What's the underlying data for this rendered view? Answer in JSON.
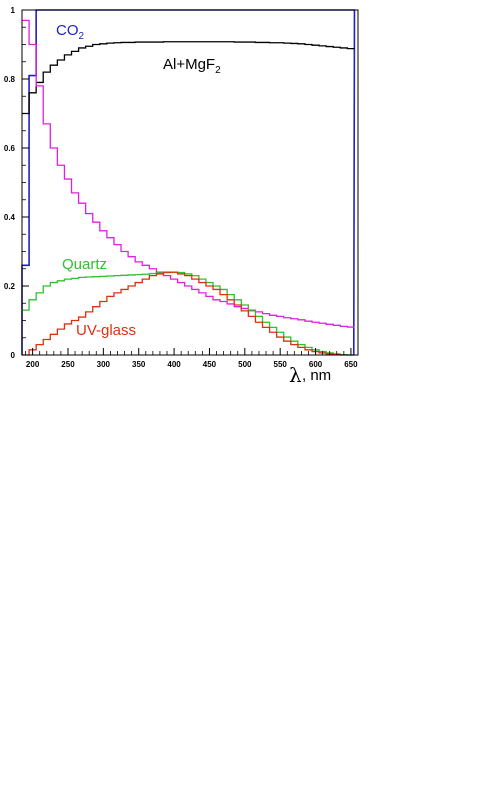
{
  "chart_data": {
    "type": "line",
    "style": "step-histogram",
    "title": "",
    "xlabel_symbol": "λ",
    "xlabel_unit": ", nm",
    "ylabel": "",
    "xlim": [
      185,
      660
    ],
    "ylim": [
      0,
      1.0
    ],
    "grid": false,
    "x_ticks": [
      200,
      250,
      300,
      350,
      400,
      450,
      500,
      550,
      600,
      650
    ],
    "y_ticks": [
      {
        "value": 0,
        "label": "0"
      },
      {
        "value": 0.2,
        "label": "0.2"
      },
      {
        "value": 0.4,
        "label": "0.4"
      },
      {
        "value": 0.6,
        "label": "0.6"
      },
      {
        "value": 0.8,
        "label": "0.8"
      },
      {
        "value": 1.0,
        "label": "1"
      }
    ],
    "bin_width": 10,
    "bin_start": 185,
    "series": [
      {
        "name": "CO",
        "name_subscript": "2",
        "color": "#2020c8",
        "values": [
          0.26,
          0.81,
          1.0,
          1.0,
          1.0,
          1.0,
          1.0,
          1.0,
          1.0,
          1.0,
          1.0,
          1.0,
          1.0,
          1.0,
          1.0,
          1.0,
          1.0,
          1.0,
          1.0,
          1.0,
          1.0,
          1.0,
          1.0,
          1.0,
          1.0,
          1.0,
          1.0,
          1.0,
          1.0,
          1.0,
          1.0,
          1.0,
          1.0,
          1.0,
          1.0,
          1.0,
          1.0,
          1.0,
          1.0,
          1.0,
          1.0,
          1.0,
          1.0,
          1.0,
          1.0,
          1.0,
          1.0
        ]
      },
      {
        "name": "Al+MgF",
        "name_subscript": "2",
        "color": "#000000",
        "values": [
          0.7,
          0.76,
          0.79,
          0.82,
          0.84,
          0.855,
          0.87,
          0.88,
          0.89,
          0.895,
          0.9,
          0.902,
          0.904,
          0.905,
          0.906,
          0.906,
          0.907,
          0.907,
          0.907,
          0.907,
          0.908,
          0.908,
          0.908,
          0.908,
          0.908,
          0.908,
          0.908,
          0.908,
          0.908,
          0.908,
          0.907,
          0.907,
          0.907,
          0.906,
          0.906,
          0.905,
          0.905,
          0.904,
          0.903,
          0.902,
          0.9,
          0.898,
          0.896,
          0.894,
          0.892,
          0.89,
          0.888
        ]
      },
      {
        "name": "",
        "color": "#e020e0",
        "values": [
          0.97,
          0.9,
          0.78,
          0.67,
          0.6,
          0.55,
          0.51,
          0.47,
          0.44,
          0.41,
          0.385,
          0.36,
          0.34,
          0.32,
          0.3,
          0.285,
          0.27,
          0.26,
          0.25,
          0.24,
          0.23,
          0.22,
          0.21,
          0.2,
          0.19,
          0.18,
          0.17,
          0.16,
          0.155,
          0.148,
          0.14,
          0.135,
          0.13,
          0.125,
          0.12,
          0.115,
          0.112,
          0.108,
          0.105,
          0.102,
          0.098,
          0.095,
          0.092,
          0.089,
          0.086,
          0.083,
          0.081
        ]
      },
      {
        "name": "Quartz",
        "color": "#30c030",
        "values": [
          0.13,
          0.16,
          0.18,
          0.2,
          0.21,
          0.215,
          0.22,
          0.222,
          0.225,
          0.226,
          0.227,
          0.228,
          0.229,
          0.23,
          0.231,
          0.232,
          0.233,
          0.234,
          0.236,
          0.238,
          0.239,
          0.24,
          0.239,
          0.235,
          0.23,
          0.22,
          0.21,
          0.2,
          0.19,
          0.175,
          0.16,
          0.145,
          0.128,
          0.112,
          0.095,
          0.08,
          0.066,
          0.052,
          0.04,
          0.03,
          0.022,
          0.015,
          0.01,
          0.006,
          0.003,
          0.001,
          0.0
        ]
      },
      {
        "name": "UV-glass",
        "color": "#e03010",
        "values": [
          0.0,
          0.015,
          0.03,
          0.045,
          0.06,
          0.075,
          0.09,
          0.1,
          0.11,
          0.125,
          0.14,
          0.155,
          0.17,
          0.18,
          0.19,
          0.2,
          0.21,
          0.22,
          0.23,
          0.235,
          0.24,
          0.24,
          0.235,
          0.23,
          0.22,
          0.21,
          0.2,
          0.19,
          0.175,
          0.16,
          0.145,
          0.128,
          0.112,
          0.095,
          0.08,
          0.066,
          0.052,
          0.04,
          0.03,
          0.022,
          0.015,
          0.01,
          0.006,
          0.003,
          0.001,
          0.0,
          0.0
        ]
      }
    ]
  }
}
